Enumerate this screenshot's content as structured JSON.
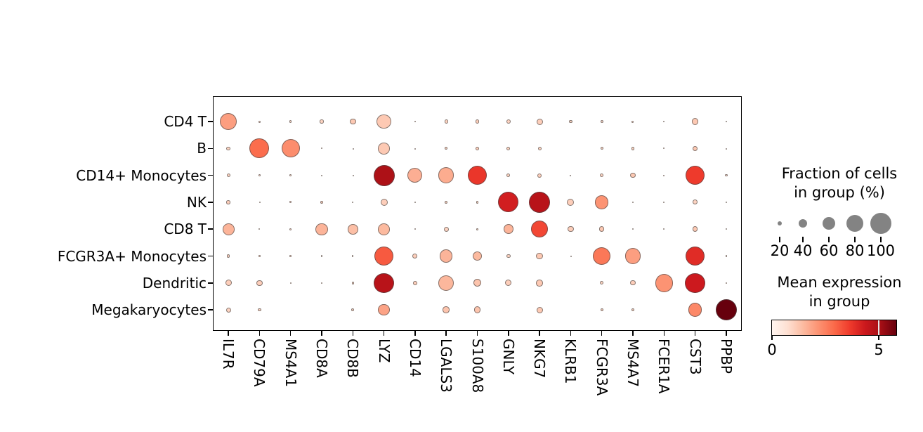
{
  "chart_data": {
    "type": "scatter",
    "subtype": "dotplot",
    "title": "",
    "x_categories": [
      "IL7R",
      "CD79A",
      "MS4A1",
      "CD8A",
      "CD8B",
      "LYZ",
      "CD14",
      "LGALS3",
      "S100A8",
      "GNLY",
      "NKG7",
      "KLRB1",
      "FCGR3A",
      "MS4A7",
      "FCER1A",
      "CST3",
      "PPBP"
    ],
    "y_categories": [
      "CD4 T",
      "B",
      "CD14+ Monocytes",
      "NK",
      "CD8 T",
      "FCGR3A+ Monocytes",
      "Dendritic",
      "Megakaryocytes"
    ],
    "size_encoding": "dot diameter proportional to fraction of cells in group (%)",
    "color_encoding": "dot color = mean expression in group (Reds colormap)",
    "size_legend": {
      "title_lines": [
        "Fraction of cells",
        "in group (%)"
      ],
      "values": [
        20,
        40,
        60,
        80,
        100
      ]
    },
    "color_legend": {
      "title_lines": [
        "Mean expression",
        "in group"
      ],
      "colormap": "Reds",
      "range": [
        0,
        5.9
      ],
      "ticks": [
        0,
        5
      ]
    },
    "series": [
      {
        "name": "CD4 T",
        "fraction_pct": [
          80,
          10,
          11,
          18,
          28,
          68,
          7,
          18,
          18,
          21,
          30,
          15,
          14,
          10,
          6,
          32,
          4
        ],
        "mean_expression": [
          2.0,
          0.9,
          0.9,
          1.0,
          1.2,
          1.2,
          0.9,
          1.0,
          1.1,
          1.0,
          1.1,
          1.0,
          0.9,
          0.9,
          0.8,
          1.2,
          0.7
        ]
      },
      {
        "name": "B",
        "fraction_pct": [
          18,
          93,
          88,
          8,
          5,
          55,
          5,
          13,
          16,
          17,
          17,
          null,
          13,
          15,
          6,
          25,
          5
        ],
        "mean_expression": [
          1.0,
          2.9,
          2.3,
          0.9,
          0.8,
          1.2,
          0.8,
          1.0,
          1.1,
          1.0,
          1.0,
          null,
          0.9,
          1.0,
          0.9,
          1.2,
          0.8
        ]
      },
      {
        "name": "CD14+ Monocytes",
        "fraction_pct": [
          17,
          9,
          9,
          6,
          5,
          100,
          70,
          75,
          92,
          16,
          20,
          6,
          16,
          26,
          7,
          90,
          12
        ],
        "mean_expression": [
          1.0,
          0.9,
          0.9,
          0.8,
          0.8,
          5.0,
          1.7,
          1.75,
          3.8,
          1.0,
          1.1,
          0.8,
          1.0,
          1.2,
          0.9,
          3.7,
          0.9
        ]
      },
      {
        "name": "NK",
        "fraction_pct": [
          18,
          5,
          10,
          16,
          6,
          34,
          5,
          14,
          12,
          97,
          100,
          33,
          65,
          6,
          5,
          23,
          4
        ],
        "mean_expression": [
          1.1,
          0.8,
          0.9,
          1.1,
          0.8,
          1.1,
          0.8,
          1.0,
          1.0,
          4.3,
          4.8,
          1.1,
          2.2,
          0.8,
          0.8,
          1.0,
          0.7
        ]
      },
      {
        "name": "CD8 T",
        "fraction_pct": [
          56,
          7,
          11,
          58,
          49,
          56,
          7,
          24,
          9,
          47,
          80,
          28,
          25,
          8,
          5,
          25,
          4
        ],
        "mean_expression": [
          1.6,
          0.8,
          0.9,
          1.6,
          1.4,
          1.5,
          0.8,
          1.0,
          1.0,
          1.6,
          3.5,
          1.1,
          1.2,
          0.8,
          0.8,
          1.2,
          0.7
        ]
      },
      {
        "name": "FCGR3A+ Monocytes",
        "fraction_pct": [
          15,
          8,
          9,
          7,
          7,
          92,
          24,
          62,
          46,
          19,
          32,
          4,
          84,
          76,
          null,
          92,
          8
        ],
        "mean_expression": [
          1.0,
          0.9,
          0.9,
          0.8,
          0.9,
          3.2,
          1.1,
          1.6,
          1.5,
          1.0,
          1.2,
          0.7,
          2.7,
          2.0,
          null,
          4.0,
          0.9
        ]
      },
      {
        "name": "Dendritic",
        "fraction_pct": [
          30,
          28,
          8,
          6,
          12,
          95,
          19,
          75,
          38,
          30,
          32,
          null,
          17,
          24,
          85,
          95,
          7
        ],
        "mean_expression": [
          1.1,
          1.1,
          0.9,
          0.9,
          1.0,
          4.8,
          1.1,
          1.55,
          1.3,
          1.1,
          1.2,
          null,
          1.0,
          1.1,
          2.2,
          4.4,
          0.9
        ]
      },
      {
        "name": "Megakaryocytes",
        "fraction_pct": [
          24,
          14,
          null,
          null,
          14,
          55,
          null,
          32,
          32,
          null,
          30,
          null,
          14,
          14,
          null,
          65,
          100
        ],
        "mean_expression": [
          1.0,
          1.0,
          null,
          null,
          1.0,
          1.9,
          null,
          1.3,
          1.3,
          null,
          1.2,
          null,
          1.0,
          1.0,
          null,
          2.4,
          5.9
        ]
      }
    ]
  }
}
